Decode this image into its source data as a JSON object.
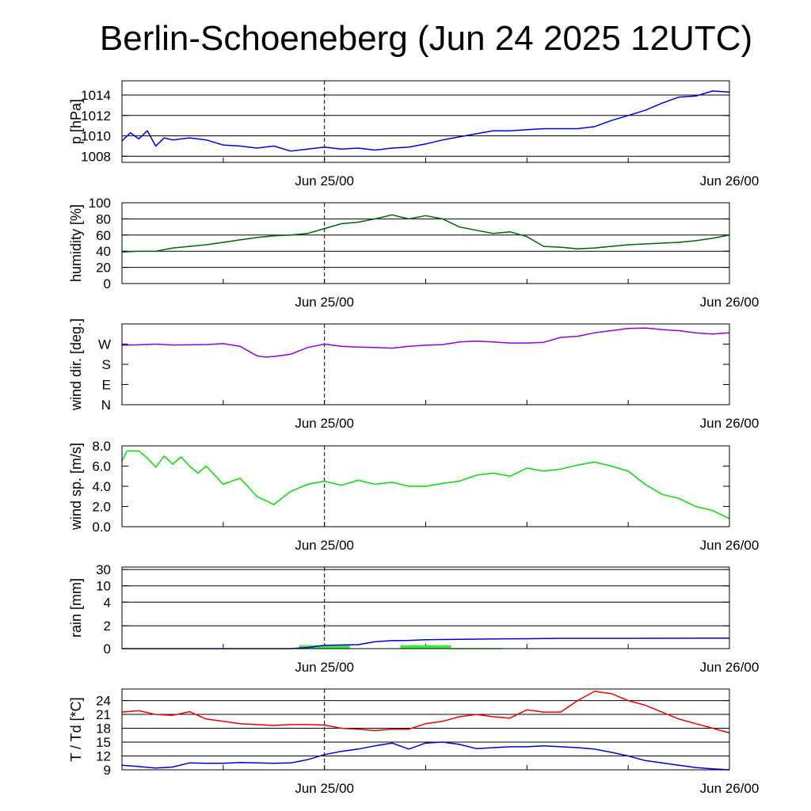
{
  "title": "Berlin-Schoeneberg (Jun 24 2025 12UTC)",
  "x_axis": {
    "start": "2025-06-24 12UTC",
    "end": "2025-06-26 00UTC",
    "ticks": [
      "Jun 25/00",
      "Jun 26/00"
    ],
    "midnight_marker": "Jun 25/00"
  },
  "chart_data": [
    {
      "id": "pressure",
      "type": "line",
      "ylabel": "p [hPa]",
      "yticks": [
        1008,
        1010,
        1012,
        1014
      ],
      "ylim": [
        1007.4,
        1015.4
      ],
      "grid": true,
      "color": "#0000dd",
      "series": [
        {
          "x": [
            0,
            0.5,
            1,
            1.5,
            2,
            2.5,
            3,
            4,
            5,
            6,
            7,
            8,
            9,
            10,
            11,
            12,
            13,
            14,
            15,
            16,
            17,
            18,
            19,
            20,
            21,
            22,
            23,
            24,
            25,
            26,
            27,
            28,
            29,
            30,
            31,
            32,
            33,
            34,
            35,
            36
          ],
          "values": [
            1009.5,
            1010.3,
            1009.7,
            1010.5,
            1009.0,
            1009.8,
            1009.6,
            1009.8,
            1009.6,
            1009.1,
            1009.0,
            1008.8,
            1009.0,
            1008.5,
            1008.7,
            1008.9,
            1008.7,
            1008.8,
            1008.6,
            1008.8,
            1008.9,
            1009.2,
            1009.6,
            1009.9,
            1010.2,
            1010.5,
            1010.5,
            1010.6,
            1010.7,
            1010.7,
            1010.7,
            1010.9,
            1011.5,
            1012.0,
            1012.5,
            1013.2,
            1013.8,
            1013.9,
            1014.4,
            1014.3
          ]
        }
      ]
    },
    {
      "id": "humidity",
      "type": "line",
      "ylabel": "humidity [%]",
      "yticks": [
        0,
        20,
        40,
        60,
        80,
        100
      ],
      "ylim": [
        0,
        100
      ],
      "grid": true,
      "color": "#006400",
      "series": [
        {
          "x": [
            0,
            1,
            2,
            3,
            4,
            5,
            6,
            7,
            8,
            9,
            10,
            11,
            12,
            13,
            14,
            15,
            16,
            17,
            18,
            19,
            20,
            21,
            22,
            23,
            24,
            25,
            26,
            27,
            28,
            29,
            30,
            31,
            32,
            33,
            34,
            35,
            36
          ],
          "values": [
            39,
            40,
            40,
            44,
            46,
            48,
            51,
            54,
            57,
            59,
            60,
            62,
            68,
            74,
            76,
            80,
            85,
            80,
            84,
            80,
            70,
            66,
            62,
            64,
            58,
            46,
            45,
            43,
            44,
            46,
            48,
            49,
            50,
            51,
            53,
            56,
            60
          ]
        }
      ]
    },
    {
      "id": "wind_direction",
      "type": "line",
      "ylabel": "wind dir. [deg.]",
      "yticks": [
        "N",
        "E",
        "S",
        "W"
      ],
      "ytick_degrees": [
        0,
        90,
        180,
        270
      ],
      "ylim": [
        0,
        360
      ],
      "grid": false,
      "color": "#9400d3",
      "series": [
        {
          "x": [
            0,
            1,
            2,
            3,
            4,
            5,
            6,
            7,
            8,
            8.5,
            9,
            10,
            11,
            12,
            13,
            14,
            15,
            16,
            17,
            18,
            19,
            20,
            21,
            22,
            23,
            24,
            25,
            26,
            27,
            28,
            29,
            30,
            31,
            32,
            33,
            34,
            35,
            36
          ],
          "values": [
            265,
            267,
            270,
            266,
            267,
            268,
            272,
            260,
            218,
            212,
            215,
            225,
            255,
            270,
            260,
            257,
            255,
            252,
            260,
            265,
            268,
            280,
            283,
            280,
            275,
            275,
            278,
            300,
            305,
            320,
            330,
            340,
            342,
            335,
            330,
            320,
            315,
            320
          ]
        }
      ]
    },
    {
      "id": "wind_speed",
      "type": "line",
      "ylabel": "wind sp. [m/s]",
      "yticks": [
        "0.0",
        "2.0",
        "4.0",
        "6.0",
        "8.0"
      ],
      "ylim": [
        0,
        8.0
      ],
      "grid": false,
      "color": "#00dd00",
      "series": [
        {
          "x": [
            0,
            0.3,
            1,
            1.5,
            2,
            2.5,
            3,
            3.5,
            4,
            4.5,
            5,
            6,
            7,
            8,
            9,
            10,
            11,
            12,
            13,
            14,
            15,
            16,
            17,
            18,
            19,
            20,
            21,
            22,
            23,
            24,
            25,
            26,
            27,
            28,
            29,
            30,
            31,
            32,
            33,
            34,
            35,
            36
          ],
          "values": [
            6.5,
            7.5,
            7.5,
            6.8,
            5.9,
            7.0,
            6.2,
            6.9,
            6.0,
            5.3,
            6.0,
            4.2,
            4.8,
            3.0,
            2.2,
            3.5,
            4.2,
            4.5,
            4.1,
            4.6,
            4.2,
            4.4,
            4.0,
            4.0,
            4.3,
            4.5,
            5.1,
            5.3,
            5.0,
            5.8,
            5.5,
            5.7,
            6.1,
            6.4,
            6.0,
            5.5,
            4.2,
            3.2,
            2.8,
            2.0,
            1.6,
            0.8
          ]
        }
      ]
    },
    {
      "id": "rain",
      "type": "bar+line",
      "ylabel": "rain [mm]",
      "yticks": [
        0,
        2,
        4,
        10,
        30
      ],
      "ylim": [
        0,
        30
      ],
      "scale": "nonlinear",
      "grid": true,
      "colors": {
        "bars": "#33ee33",
        "accumulated": "#0000cc"
      },
      "bars": [
        {
          "x_start": 10.5,
          "x_end": 13.5,
          "value": 0.3
        },
        {
          "x_start": 16.5,
          "x_end": 19.5,
          "value": 0.3
        },
        {
          "x_start": 19.5,
          "x_end": 22.5,
          "value": 0.05
        }
      ],
      "series": [
        {
          "name": "accumulated",
          "x": [
            0,
            10,
            11,
            12,
            14,
            15,
            16,
            17,
            18,
            20,
            22,
            24,
            26,
            28,
            30,
            36
          ],
          "values": [
            0,
            0,
            0.1,
            0.3,
            0.35,
            0.6,
            0.7,
            0.72,
            0.78,
            0.82,
            0.85,
            0.87,
            0.9,
            0.9,
            0.9,
            0.92
          ]
        }
      ]
    },
    {
      "id": "temperature",
      "type": "line",
      "ylabel": "T / Td [*C]",
      "yticks": [
        9,
        12,
        15,
        18,
        21,
        24
      ],
      "ylim": [
        9,
        26.5
      ],
      "grid": true,
      "series": [
        {
          "color": "#ee0000",
          "x": [
            0,
            1,
            2,
            3,
            4,
            5,
            6,
            7,
            8,
            9,
            10,
            11,
            12,
            13,
            14,
            15,
            16,
            17,
            18,
            19,
            20,
            21,
            22,
            23,
            24,
            25,
            26,
            27,
            28,
            29,
            30,
            31,
            32,
            33,
            34,
            35,
            36
          ],
          "values": [
            21.5,
            21.8,
            21.0,
            20.8,
            21.6,
            20.0,
            19.5,
            19.0,
            18.8,
            18.6,
            18.8,
            18.8,
            18.7,
            18.0,
            17.8,
            17.5,
            17.8,
            17.8,
            19.0,
            19.5,
            20.5,
            21.0,
            20.5,
            20.2,
            22.0,
            21.5,
            21.5,
            24.0,
            26.0,
            25.5,
            24.0,
            23.0,
            21.5,
            20.0,
            19.0,
            18.0,
            17.0
          ]
        },
        {
          "color": "#0000cc",
          "x": [
            0,
            1,
            2,
            3,
            4,
            5,
            6,
            7,
            8,
            9,
            10,
            11,
            12,
            13,
            14,
            15,
            16,
            17,
            18,
            19,
            20,
            21,
            22,
            23,
            24,
            25,
            26,
            27,
            28,
            29,
            30,
            31,
            32,
            33,
            34,
            35,
            36
          ],
          "values": [
            10.0,
            9.7,
            9.4,
            9.6,
            10.5,
            10.4,
            10.4,
            10.6,
            10.5,
            10.4,
            10.5,
            11.2,
            12.3,
            13.0,
            13.5,
            14.2,
            14.8,
            13.5,
            14.8,
            15.0,
            14.5,
            13.6,
            13.8,
            14.0,
            14.0,
            14.2,
            14.0,
            13.8,
            13.5,
            12.8,
            12.0,
            11.0,
            10.5,
            10.0,
            9.5,
            9.2,
            9.0
          ]
        }
      ]
    }
  ]
}
